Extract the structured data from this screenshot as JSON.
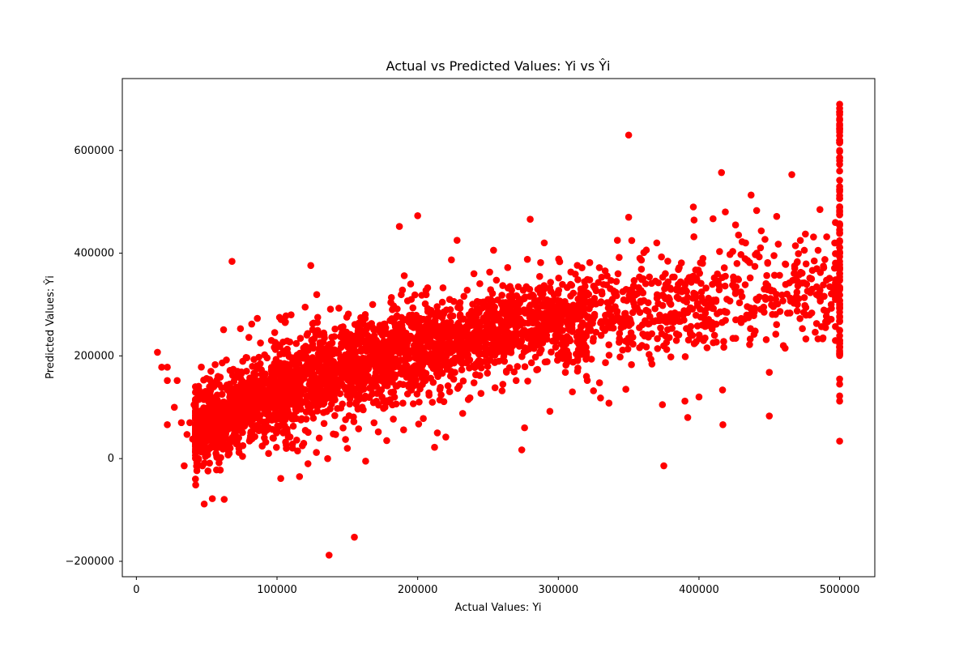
{
  "chart_data": {
    "type": "scatter",
    "title": "Actual vs Predicted Values: Yi vs Ŷi",
    "xlabel": "Actual Values: Yi",
    "ylabel": "Predicted Values: Ŷi",
    "xlim": [
      -10000,
      525000
    ],
    "ylim": [
      -230000,
      740000
    ],
    "xticks": [
      0,
      100000,
      200000,
      300000,
      400000,
      500000
    ],
    "yticks": [
      -200000,
      0,
      200000,
      400000,
      600000
    ],
    "xtick_labels": [
      "0",
      "100000",
      "200000",
      "300000",
      "400000",
      "500000"
    ],
    "ytick_labels": [
      "−200000",
      "0",
      "200000",
      "400000",
      "600000"
    ],
    "grid": false,
    "legend": "none",
    "marker_color": "#ff0000",
    "series": [
      {
        "values_points": [
          [
            15000,
            207000
          ],
          [
            18000,
            178000
          ],
          [
            22000,
            178000
          ],
          [
            22000,
            152000
          ],
          [
            22000,
            66000
          ],
          [
            27000,
            100000
          ],
          [
            29000,
            152000
          ],
          [
            32000,
            70000
          ],
          [
            34000,
            -14000
          ],
          [
            36000,
            47000
          ],
          [
            38000,
            70000
          ],
          [
            40000,
            38000
          ],
          [
            41000,
            105000
          ],
          [
            42000,
            140000
          ],
          [
            43000,
            -8000
          ],
          [
            44000,
            62000
          ],
          [
            45000,
            125000
          ],
          [
            46000,
            13000
          ],
          [
            47000,
            -14000
          ],
          [
            48000,
            125000
          ],
          [
            50000,
            88000
          ],
          [
            52000,
            140000
          ],
          [
            53000,
            170000
          ],
          [
            54000,
            103000
          ],
          [
            54000,
            -78000
          ],
          [
            56000,
            183000
          ],
          [
            57000,
            -22000
          ],
          [
            58000,
            160000
          ],
          [
            60000,
            2000
          ],
          [
            62000,
            251000
          ],
          [
            64000,
            192000
          ],
          [
            66000,
            10000
          ],
          [
            68000,
            384000
          ],
          [
            70000,
            158000
          ],
          [
            72000,
            170000
          ],
          [
            74000,
            253000
          ],
          [
            78000,
            197000
          ],
          [
            80000,
            236000
          ],
          [
            82000,
            262000
          ],
          [
            86000,
            273000
          ],
          [
            90000,
            156000
          ],
          [
            92000,
            32000
          ],
          [
            94000,
            10000
          ],
          [
            96000,
            230000
          ],
          [
            100000,
            55000
          ],
          [
            102000,
            218000
          ],
          [
            104000,
            73000
          ],
          [
            106000,
            266000
          ],
          [
            108000,
            42000
          ],
          [
            110000,
            280000
          ],
          [
            112000,
            80000
          ],
          [
            114000,
            36000
          ],
          [
            116000,
            -35000
          ],
          [
            118000,
            25000
          ],
          [
            120000,
            295000
          ],
          [
            122000,
            -10000
          ],
          [
            124000,
            376000
          ],
          [
            126000,
            264000
          ],
          [
            128000,
            12000
          ],
          [
            130000,
            40000
          ],
          [
            134000,
            178000
          ],
          [
            136000,
            0
          ],
          [
            137000,
            -188000
          ],
          [
            138000,
            291000
          ],
          [
            140000,
            48000
          ],
          [
            144000,
            293000
          ],
          [
            150000,
            20000
          ],
          [
            155000,
            -153000
          ],
          [
            158000,
            58000
          ],
          [
            160000,
            250000
          ],
          [
            163000,
            -5000
          ],
          [
            168000,
            300000
          ],
          [
            172000,
            52000
          ],
          [
            178000,
            35000
          ],
          [
            182000,
            290000
          ],
          [
            187000,
            452000
          ],
          [
            190000,
            56000
          ],
          [
            195000,
            340000
          ],
          [
            200000,
            473000
          ],
          [
            204000,
            78000
          ],
          [
            208000,
            128000
          ],
          [
            212000,
            22000
          ],
          [
            214000,
            50000
          ],
          [
            220000,
            42000
          ],
          [
            224000,
            387000
          ],
          [
            228000,
            425000
          ],
          [
            232000,
            88000
          ],
          [
            236000,
            115000
          ],
          [
            240000,
            360000
          ],
          [
            245000,
            127000
          ],
          [
            250000,
            310000
          ],
          [
            255000,
            138000
          ],
          [
            260000,
            132000
          ],
          [
            264000,
            372000
          ],
          [
            270000,
            152000
          ],
          [
            274000,
            17000
          ],
          [
            276000,
            60000
          ],
          [
            278000,
            388000
          ],
          [
            280000,
            466000
          ],
          [
            284000,
            298000
          ],
          [
            290000,
            420000
          ],
          [
            294000,
            92000
          ],
          [
            298000,
            240000
          ],
          [
            305000,
            168000
          ],
          [
            310000,
            130000
          ],
          [
            316000,
            310000
          ],
          [
            320000,
            160000
          ],
          [
            325000,
            132000
          ],
          [
            330000,
            118000
          ],
          [
            336000,
            108000
          ],
          [
            342000,
            425000
          ],
          [
            348000,
            135000
          ],
          [
            350000,
            630000
          ],
          [
            350000,
            470000
          ],
          [
            352000,
            183000
          ],
          [
            358000,
            390000
          ],
          [
            364000,
            262000
          ],
          [
            370000,
            420000
          ],
          [
            374000,
            105000
          ],
          [
            375000,
            -14000
          ],
          [
            380000,
            198000
          ],
          [
            384000,
            243000
          ],
          [
            390000,
            112000
          ],
          [
            392000,
            80000
          ],
          [
            396000,
            490000
          ],
          [
            400000,
            120000
          ],
          [
            404000,
            288000
          ],
          [
            410000,
            467000
          ],
          [
            416000,
            557000
          ],
          [
            417000,
            66000
          ],
          [
            422000,
            307000
          ],
          [
            426000,
            455000
          ],
          [
            430000,
            265000
          ],
          [
            436000,
            222000
          ],
          [
            441000,
            483000
          ],
          [
            446000,
            295000
          ],
          [
            450000,
            168000
          ],
          [
            450000,
            83000
          ],
          [
            455000,
            320000
          ],
          [
            460000,
            220000
          ],
          [
            466000,
            553000
          ],
          [
            470000,
            300000
          ],
          [
            476000,
            233000
          ],
          [
            480000,
            350000
          ],
          [
            486000,
            485000
          ],
          [
            490000,
            255000
          ],
          [
            494000,
            300000
          ],
          [
            500000,
            690000
          ],
          [
            500000,
            670000
          ],
          [
            500000,
            640000
          ],
          [
            500000,
            600000
          ],
          [
            500000,
            560000
          ],
          [
            500000,
            520000
          ],
          [
            500000,
            480000
          ],
          [
            500000,
            440000
          ],
          [
            500000,
            400000
          ],
          [
            500000,
            360000
          ],
          [
            500000,
            330000
          ],
          [
            500000,
            300000
          ],
          [
            500000,
            275000
          ],
          [
            500000,
            250000
          ],
          [
            500000,
            225000
          ],
          [
            500000,
            205000
          ],
          [
            500000,
            155000
          ],
          [
            500000,
            145000
          ],
          [
            500000,
            122000
          ],
          [
            500000,
            112000
          ],
          [
            500000,
            34000
          ]
        ],
        "cluster_trend": [
          [
            45000,
            65000
          ],
          [
            60000,
            80000
          ],
          [
            75000,
            100000
          ],
          [
            90000,
            120000
          ],
          [
            105000,
            135000
          ],
          [
            120000,
            150000
          ],
          [
            135000,
            165000
          ],
          [
            150000,
            178000
          ],
          [
            165000,
            190000
          ],
          [
            180000,
            202000
          ],
          [
            195000,
            212000
          ],
          [
            210000,
            222000
          ],
          [
            225000,
            232000
          ],
          [
            240000,
            240000
          ],
          [
            255000,
            248000
          ],
          [
            270000,
            255000
          ],
          [
            285000,
            262000
          ],
          [
            300000,
            268000
          ],
          [
            315000,
            274000
          ],
          [
            330000,
            280000
          ],
          [
            345000,
            286000
          ],
          [
            360000,
            292000
          ],
          [
            375000,
            296000
          ],
          [
            390000,
            302000
          ],
          [
            405000,
            306000
          ],
          [
            420000,
            310000
          ],
          [
            435000,
            314000
          ],
          [
            450000,
            318000
          ],
          [
            465000,
            322000
          ],
          [
            480000,
            326000
          ],
          [
            495000,
            330000
          ]
        ]
      }
    ]
  }
}
